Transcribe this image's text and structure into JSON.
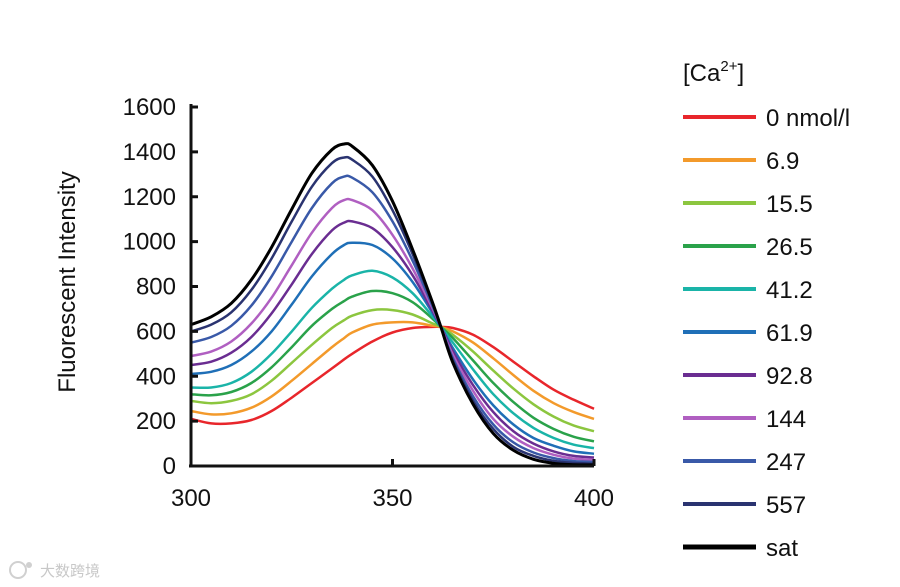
{
  "chart_data": {
    "type": "line",
    "title": "",
    "xlabel": "",
    "ylabel": "Fluorescent Intensity",
    "xlim": [
      300,
      400
    ],
    "ylim": [
      0,
      1600
    ],
    "xticks": [
      300,
      350,
      400
    ],
    "yticks": [
      0,
      200,
      400,
      600,
      800,
      1000,
      1200,
      1400,
      1600
    ],
    "legend_title_base": "[Ca",
    "legend_title_sup": "2+",
    "legend_title_end": "]",
    "legend_position": "right",
    "x": [
      300,
      305,
      310,
      315,
      320,
      325,
      330,
      335,
      338,
      340,
      345,
      350,
      355,
      360,
      362,
      365,
      370,
      375,
      380,
      385,
      390,
      395,
      400
    ],
    "series": [
      {
        "name": "0 nmol/l",
        "color": "#e8262b",
        "values": [
          210,
          190,
          190,
          205,
          245,
          305,
          370,
          435,
          475,
          500,
          555,
          595,
          615,
          620,
          620,
          615,
          585,
          530,
          465,
          400,
          340,
          295,
          255
        ]
      },
      {
        "name": "6.9",
        "color": "#f39a2b",
        "values": [
          245,
          230,
          235,
          260,
          310,
          380,
          455,
          530,
          570,
          595,
          630,
          640,
          640,
          625,
          620,
          600,
          550,
          480,
          405,
          335,
          280,
          240,
          210
        ]
      },
      {
        "name": "15.5",
        "color": "#8cc63f",
        "values": [
          290,
          280,
          290,
          320,
          380,
          460,
          540,
          615,
          650,
          670,
          695,
          695,
          675,
          635,
          620,
          585,
          510,
          425,
          345,
          275,
          220,
          180,
          155
        ]
      },
      {
        "name": "26.5",
        "color": "#2aa24a",
        "values": [
          320,
          315,
          330,
          370,
          440,
          530,
          625,
          700,
          735,
          755,
          780,
          770,
          730,
          655,
          620,
          570,
          470,
          370,
          285,
          215,
          165,
          130,
          110
        ]
      },
      {
        "name": "41.2",
        "color": "#1ab4a8",
        "values": [
          350,
          350,
          370,
          420,
          500,
          600,
          705,
          790,
          830,
          850,
          870,
          840,
          770,
          665,
          620,
          550,
          430,
          320,
          235,
          170,
          125,
          95,
          80
        ]
      },
      {
        "name": "61.9",
        "color": "#1f6fb7",
        "values": [
          410,
          420,
          450,
          510,
          600,
          720,
          845,
          945,
          985,
          995,
          985,
          925,
          820,
          680,
          620,
          525,
          385,
          270,
          185,
          125,
          90,
          65,
          55
        ]
      },
      {
        "name": "92.8",
        "color": "#6a2d91",
        "values": [
          450,
          465,
          505,
          575,
          680,
          810,
          945,
          1050,
          1085,
          1090,
          1060,
          975,
          850,
          690,
          620,
          510,
          360,
          240,
          155,
          100,
          65,
          45,
          38
        ]
      },
      {
        "name": "144",
        "color": "#b05fc1",
        "values": [
          490,
          510,
          555,
          635,
          750,
          895,
          1040,
          1150,
          1185,
          1185,
          1140,
          1030,
          880,
          700,
          620,
          495,
          335,
          210,
          130,
          80,
          50,
          33,
          28
        ]
      },
      {
        "name": "247",
        "color": "#3959a8",
        "values": [
          550,
          575,
          625,
          715,
          845,
          1000,
          1150,
          1260,
          1290,
          1285,
          1220,
          1090,
          915,
          710,
          620,
          480,
          310,
          185,
          105,
          60,
          35,
          22,
          18
        ]
      },
      {
        "name": "557",
        "color": "#2a3370",
        "values": [
          600,
          630,
          685,
          785,
          925,
          1090,
          1245,
          1350,
          1375,
          1365,
          1290,
          1140,
          945,
          720,
          620,
          470,
          290,
          165,
          85,
          45,
          23,
          14,
          10
        ]
      },
      {
        "name": "sat",
        "color": "#000000",
        "values": [
          630,
          665,
          725,
          830,
          975,
          1145,
          1305,
          1410,
          1435,
          1425,
          1340,
          1180,
          965,
          725,
          620,
          460,
          275,
          145,
          70,
          30,
          12,
          6,
          5
        ]
      }
    ]
  },
  "watermark": {
    "text": "大数跨境"
  }
}
